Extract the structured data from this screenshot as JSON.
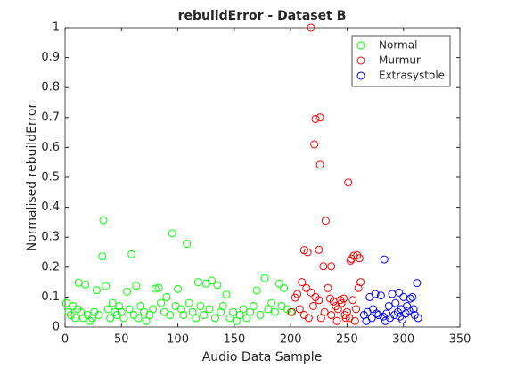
{
  "chart_data": {
    "type": "scatter",
    "title": "rebuildError - Dataset B",
    "xlabel": "Audio Data Sample",
    "ylabel": "Normalised rebuildError",
    "xlim": [
      0,
      350
    ],
    "ylim": [
      0,
      1
    ],
    "xticks": [
      0,
      50,
      100,
      150,
      200,
      250,
      300,
      350
    ],
    "yticks": [
      0,
      0.1,
      0.2,
      0.3,
      0.4,
      0.5,
      0.6,
      0.7,
      0.8,
      0.9,
      1
    ],
    "legend": "northeast",
    "grid": false,
    "series": [
      {
        "name": "Normal",
        "color": "#00ff00",
        "x": [
          1,
          3,
          5,
          7,
          9,
          11,
          12,
          14,
          16,
          18,
          20,
          22,
          24,
          26,
          28,
          30,
          33,
          34,
          36,
          38,
          40,
          42,
          44,
          46,
          48,
          50,
          52,
          55,
          57,
          59,
          61,
          63,
          65,
          67,
          70,
          72,
          75,
          78,
          80,
          83,
          85,
          88,
          90,
          93,
          95,
          98,
          100,
          103,
          105,
          108,
          110,
          113,
          116,
          118,
          120,
          123,
          125,
          128,
          130,
          133,
          135,
          138,
          140,
          143,
          146,
          149,
          152,
          155,
          158,
          161,
          164,
          167,
          170,
          173,
          177,
          180,
          183,
          186,
          190,
          192,
          194,
          197,
          200
        ],
        "values": [
          0.08,
          0.05,
          0.04,
          0.07,
          0.03,
          0.06,
          0.148,
          0.05,
          0.03,
          0.142,
          0.04,
          0.02,
          0.03,
          0.05,
          0.123,
          0.04,
          0.236,
          0.357,
          0.137,
          0.06,
          0.03,
          0.08,
          0.05,
          0.04,
          0.07,
          0.05,
          0.03,
          0.118,
          0.06,
          0.243,
          0.04,
          0.138,
          0.03,
          0.07,
          0.05,
          0.02,
          0.04,
          0.06,
          0.128,
          0.131,
          0.08,
          0.05,
          0.1,
          0.04,
          0.313,
          0.07,
          0.127,
          0.06,
          0.04,
          0.278,
          0.08,
          0.05,
          0.03,
          0.15,
          0.07,
          0.04,
          0.145,
          0.06,
          0.155,
          0.03,
          0.14,
          0.05,
          0.07,
          0.108,
          0.03,
          0.05,
          0.02,
          0.04,
          0.06,
          0.03,
          0.05,
          0.07,
          0.122,
          0.04,
          0.163,
          0.06,
          0.08,
          0.05,
          0.145,
          0.07,
          0.13,
          0.06,
          0.05
        ]
      },
      {
        "name": "Murmur",
        "color": "#ff0000",
        "x": [
          201,
          204,
          206,
          208,
          210,
          212,
          212,
          214,
          215,
          216,
          218,
          218,
          220,
          221,
          222,
          222,
          225,
          225,
          226,
          226,
          227,
          229,
          230,
          231,
          233,
          235,
          236,
          236,
          238,
          240,
          241,
          242,
          244,
          245,
          247,
          248,
          249,
          250,
          251,
          252,
          253,
          254,
          255,
          256,
          257,
          258,
          259,
          260,
          261,
          262
        ],
        "values": [
          0.05,
          0.098,
          0.11,
          0.06,
          0.15,
          0.257,
          0.04,
          0.13,
          0.25,
          0.03,
          1,
          0.115,
          0.07,
          0.61,
          0.695,
          0.1,
          0.258,
          0.09,
          0.7,
          0.542,
          0.03,
          0.203,
          0.05,
          0.355,
          0.13,
          0.095,
          0.203,
          0.04,
          0.085,
          0.07,
          0.02,
          0.06,
          0.09,
          0.08,
          0.095,
          0.04,
          0.03,
          0.05,
          0.483,
          0.03,
          0.222,
          0.228,
          0.09,
          0.238,
          0.02,
          0.06,
          0.24,
          0.13,
          0.23,
          0.15
        ]
      },
      {
        "name": "Extrasystole",
        "color": "#0000ff",
        "x": [
          265,
          267,
          268,
          270,
          272,
          273,
          275,
          276,
          278,
          280,
          282,
          283,
          284,
          285,
          287,
          288,
          290,
          292,
          293,
          295,
          296,
          297,
          298,
          299,
          300,
          302,
          303,
          305,
          306,
          308,
          309,
          310,
          312,
          313
        ],
        "values": [
          0.04,
          0.02,
          0.05,
          0.1,
          0.03,
          0.06,
          0.11,
          0.045,
          0.04,
          0.105,
          0.035,
          0.226,
          0.02,
          0.045,
          0.07,
          0.03,
          0.11,
          0.04,
          0.08,
          0.05,
          0.115,
          0.035,
          0.06,
          0.025,
          0.1,
          0.045,
          0.07,
          0.055,
          0.095,
          0.1,
          0.06,
          0.04,
          0.147,
          0.03
        ]
      }
    ]
  }
}
